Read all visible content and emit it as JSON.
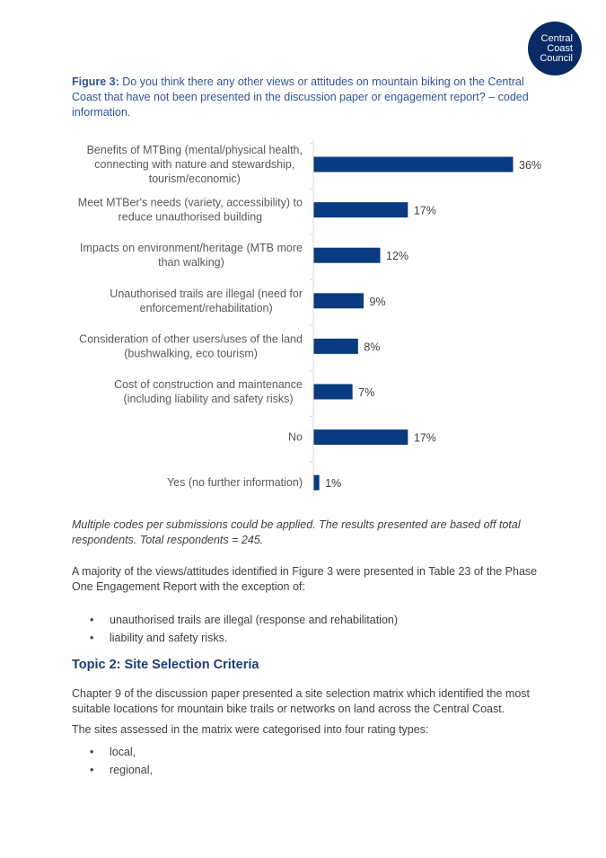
{
  "logo": {
    "line1": "Central",
    "line2": "Coast",
    "line3": "Council"
  },
  "figure": {
    "label": "Figure 3:",
    "caption": " Do you think there any other views or attitudes on mountain biking on the Central Coast that have not been presented in the discussion paper or engagement report? – coded information."
  },
  "chart_data": {
    "type": "bar",
    "orientation": "horizontal",
    "categories": [
      [
        "Benefits of MTBing (mental/physical health,",
        "connecting with nature and stewardship,",
        "tourism/economic)"
      ],
      [
        "Meet MTBer's needs (variety, accessibility) to",
        "reduce unauthorised building"
      ],
      [
        "Impacts on environment/heritage (MTB more",
        "than walking)"
      ],
      [
        "Unauthorised trails are illegal (need for",
        "enforcement/rehabilitation)"
      ],
      [
        "Consideration of other users/uses of the land",
        "(bushwalking, eco tourism)"
      ],
      [
        "Cost of construction and maintenance",
        "(including liability and safety risks)"
      ],
      [
        "No"
      ],
      [
        "Yes (no further information)"
      ]
    ],
    "values": [
      36,
      17,
      12,
      9,
      8,
      7,
      17,
      1
    ],
    "value_labels": [
      "36%",
      "17%",
      "12%",
      "9%",
      "8%",
      "7%",
      "17%",
      "1%"
    ],
    "unit": "%",
    "xlim": [
      0,
      36
    ],
    "bar_color": "#0a3a7f",
    "grid": false,
    "title": "",
    "xlabel": "",
    "ylabel": ""
  },
  "note": "Multiple codes per submissions could be applied. The results presented are based off total respondents. Total respondents = 245.",
  "para1": "A majority of the views/attitudes identified in Figure 3 were presented in Table 23 of the Phase One Engagement Report with the exception of:",
  "bullets1": [
    "unauthorised trails are illegal (response and rehabilitation)",
    "liability and safety risks."
  ],
  "heading": "Topic 2: Site Selection Criteria",
  "para2": "Chapter 9 of the discussion paper presented a site selection matrix which identified the most suitable locations for mountain bike trails or networks on land across the Central Coast.",
  "para3": "The sites assessed in the matrix were categorised into four rating types:",
  "bullets2": [
    "local,",
    "regional,"
  ]
}
